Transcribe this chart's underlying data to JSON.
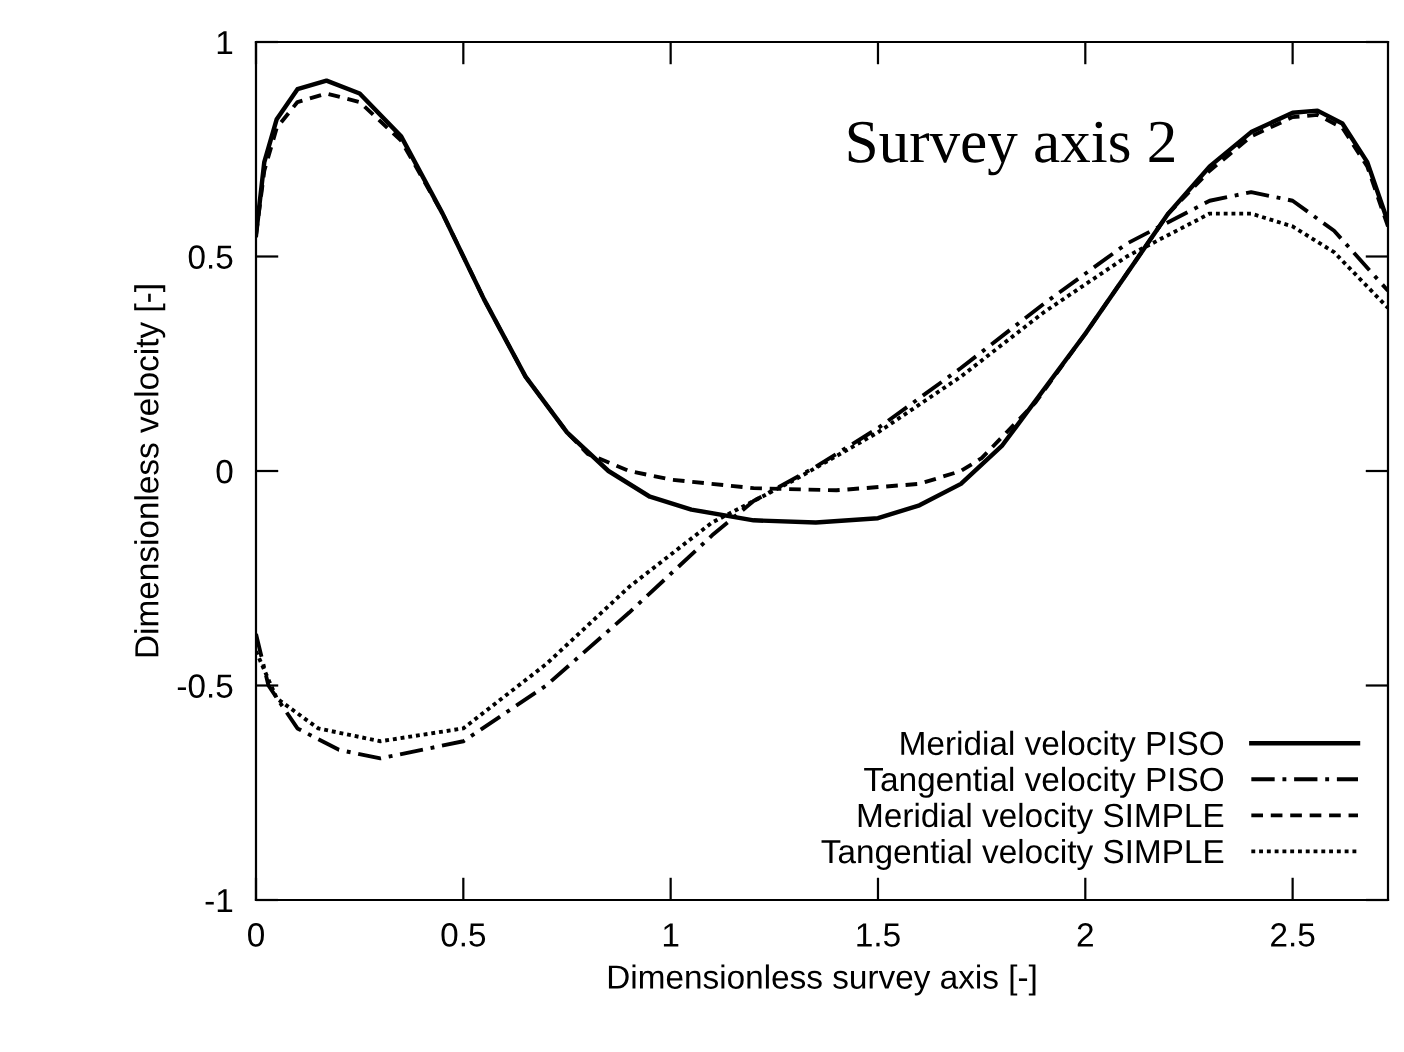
{
  "chart_data": {
    "type": "line",
    "xlabel": "Dimensionless survey axis [-]",
    "ylabel": "Dimensionless velocity [-]",
    "annotations": [
      "Survey axis 2"
    ],
    "xlim": [
      0,
      2.73
    ],
    "ylim": [
      -1,
      1
    ],
    "xticks": [
      0,
      0.5,
      1,
      1.5,
      2,
      2.5
    ],
    "yticks": [
      -1,
      -0.5,
      0,
      0.5,
      1
    ],
    "grid": false,
    "legend": "bottom right",
    "marker": "none",
    "series": [
      {
        "name": "Meridial velocity PISO",
        "color": "#000000",
        "line_style": "solid",
        "x": [
          0,
          0.02,
          0.05,
          0.1,
          0.17,
          0.25,
          0.35,
          0.45,
          0.55,
          0.65,
          0.75,
          0.85,
          0.95,
          1.05,
          1.2,
          1.35,
          1.5,
          1.6,
          1.7,
          1.8,
          1.9,
          2.0,
          2.1,
          2.2,
          2.3,
          2.4,
          2.5,
          2.56,
          2.62,
          2.68,
          2.73
        ],
        "values": [
          0.55,
          0.72,
          0.82,
          0.89,
          0.91,
          0.88,
          0.78,
          0.6,
          0.4,
          0.22,
          0.09,
          0.0,
          -0.06,
          -0.09,
          -0.115,
          -0.12,
          -0.11,
          -0.08,
          -0.03,
          0.06,
          0.19,
          0.32,
          0.46,
          0.6,
          0.71,
          0.79,
          0.835,
          0.84,
          0.81,
          0.72,
          0.58
        ]
      },
      {
        "name": "Tangential velocity PISO",
        "color": "#000000",
        "line_style": "dashdot",
        "x": [
          0,
          0.03,
          0.1,
          0.2,
          0.3,
          0.5,
          0.7,
          0.9,
          1.1,
          1.2,
          1.35,
          1.5,
          1.7,
          1.9,
          2.1,
          2.3,
          2.4,
          2.5,
          2.6,
          2.73
        ],
        "values": [
          -0.38,
          -0.5,
          -0.6,
          -0.65,
          -0.67,
          -0.63,
          -0.5,
          -0.33,
          -0.15,
          -0.07,
          0.01,
          0.1,
          0.24,
          0.39,
          0.53,
          0.63,
          0.65,
          0.63,
          0.56,
          0.42
        ]
      },
      {
        "name": "Meridial velocity SIMPLE",
        "color": "#000000",
        "line_style": "dashed",
        "x": [
          0,
          0.02,
          0.05,
          0.1,
          0.17,
          0.25,
          0.35,
          0.45,
          0.55,
          0.65,
          0.75,
          0.8,
          0.9,
          1.0,
          1.2,
          1.4,
          1.6,
          1.7,
          1.75,
          1.88,
          2.0,
          2.1,
          2.2,
          2.3,
          2.4,
          2.5,
          2.56,
          2.62,
          2.68,
          2.73
        ],
        "values": [
          0.55,
          0.7,
          0.8,
          0.86,
          0.88,
          0.86,
          0.77,
          0.6,
          0.4,
          0.22,
          0.09,
          0.04,
          0.0,
          -0.02,
          -0.04,
          -0.045,
          -0.03,
          0.0,
          0.03,
          0.16,
          0.32,
          0.46,
          0.6,
          0.7,
          0.78,
          0.825,
          0.83,
          0.8,
          0.71,
          0.57
        ]
      },
      {
        "name": "Tangential velocity SIMPLE",
        "color": "#000000",
        "line_style": "dotted",
        "x": [
          0,
          0.05,
          0.15,
          0.3,
          0.5,
          0.7,
          0.9,
          1.1,
          1.3,
          1.5,
          1.7,
          1.9,
          2.1,
          2.3,
          2.4,
          2.5,
          2.6,
          2.73
        ],
        "values": [
          -0.42,
          -0.53,
          -0.6,
          -0.63,
          -0.6,
          -0.45,
          -0.27,
          -0.12,
          -0.02,
          0.09,
          0.22,
          0.37,
          0.5,
          0.6,
          0.6,
          0.57,
          0.51,
          0.38
        ]
      }
    ]
  }
}
